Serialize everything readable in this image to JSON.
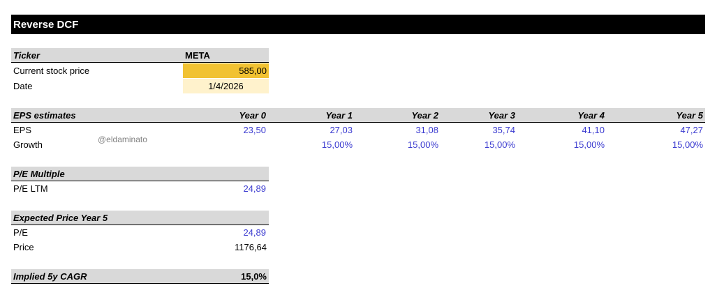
{
  "title": "Reverse DCF",
  "ticker": {
    "label": "Ticker",
    "value": "META",
    "rows": [
      {
        "label": "Current stock price",
        "value": "585,00"
      },
      {
        "label": "Date",
        "value": "1/4/2026"
      }
    ]
  },
  "eps": {
    "label": "EPS estimates",
    "columns": [
      "Year 0",
      "Year 1",
      "Year 2",
      "Year 3",
      "Year 4",
      "Year 5"
    ],
    "eps_row": {
      "label": "EPS",
      "values": [
        "23,50",
        "27,03",
        "31,08",
        "35,74",
        "41,10",
        "47,27"
      ]
    },
    "growth_row": {
      "label": "Growth",
      "values": [
        "15,00%",
        "15,00%",
        "15,00%",
        "15,00%",
        "15,00%"
      ]
    }
  },
  "watermark": "@eldaminato",
  "pe_multiple": {
    "label": "P/E Multiple",
    "rows": [
      {
        "label": "P/E LTM",
        "value": "24,89"
      }
    ]
  },
  "expected_price": {
    "label": "Expected Price Year 5",
    "rows": [
      {
        "label": "P/E",
        "value": "24,89"
      },
      {
        "label": "Price",
        "value": "1176,64"
      }
    ]
  },
  "cagr": {
    "label": "Implied 5y CAGR",
    "value": "15,0%"
  }
}
